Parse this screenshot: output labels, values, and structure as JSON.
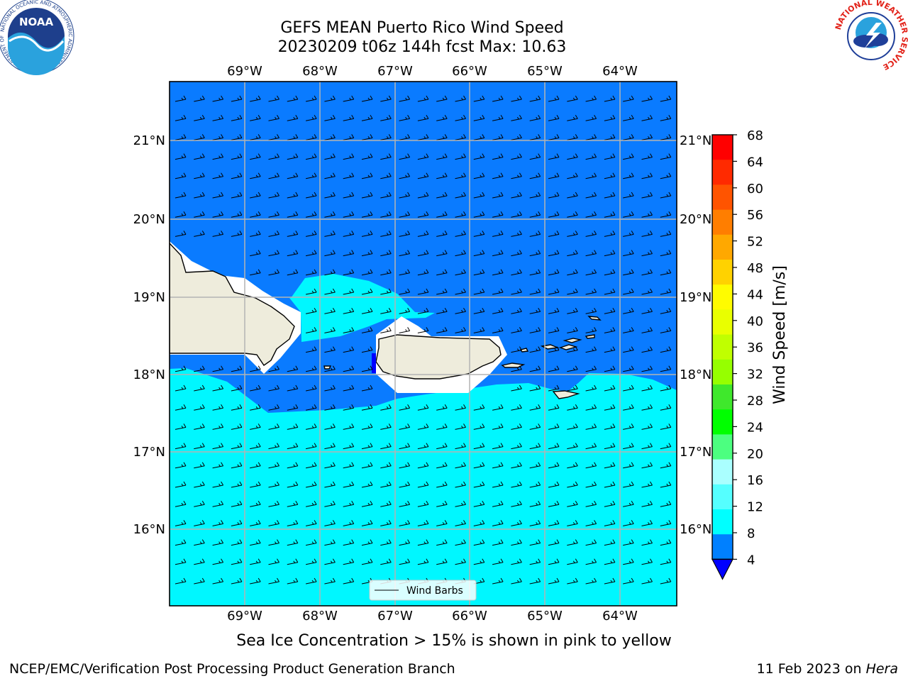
{
  "header": {
    "title_line1": "GEFS MEAN Puerto Rico Wind Speed",
    "title_line2": "20230209 t06z 144h fcst   Max: 10.63"
  },
  "map": {
    "lon_labels": [
      "69°W",
      "68°W",
      "67°W",
      "66°W",
      "65°W",
      "64°W"
    ],
    "lat_labels": [
      "21°N",
      "20°N",
      "19°N",
      "18°N",
      "17°N",
      "16°N"
    ],
    "colors": {
      "sea_4_8": "#0a7bff",
      "sea_8_12": "#00f7ff",
      "land": "#eeecdc",
      "masked": "#ffffff",
      "grid": "#b4b4b4"
    },
    "legend_label": "Wind Barbs"
  },
  "colorbar": {
    "label": "Wind Speed [m/s]",
    "ticks": [
      "68",
      "64",
      "60",
      "56",
      "52",
      "48",
      "44",
      "40",
      "36",
      "32",
      "28",
      "24",
      "20",
      "16",
      "12",
      "8",
      "4"
    ],
    "colors_top_to_bottom": [
      "#ff0000",
      "#ff2a00",
      "#ff5400",
      "#ff7e00",
      "#ffa800",
      "#ffd200",
      "#fffc00",
      "#e9ff00",
      "#c0ff00",
      "#96ff00",
      "#3fe82c",
      "#00ff00",
      "#4cff80",
      "#aaffff",
      "#55ffff",
      "#00ffff",
      "#0080ff"
    ],
    "extend_color": "#0000ff"
  },
  "caption": "Sea Ice Concentration > 15% is shown in pink to yellow",
  "footer": {
    "left": "NCEP/EMC/Verification Post Processing Product Generation Branch",
    "right_date": "11 Feb 2023 on ",
    "right_host": "Hera"
  },
  "logos": {
    "noaa_text": "NOAA",
    "noaa_ring": "NATIONAL OCEANIC AND ATMOSPHERIC ADMINISTRATION · U.S. DEPARTMENT OF COMMERCE",
    "nws_ring": "NATIONAL WEATHER SERVICE"
  }
}
